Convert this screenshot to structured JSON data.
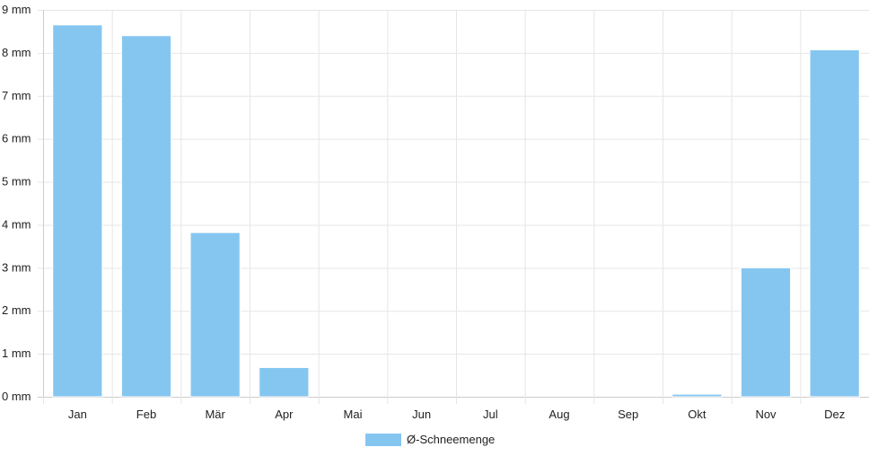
{
  "chart_data": {
    "type": "bar",
    "categories": [
      "Jan",
      "Feb",
      "Mär",
      "Apr",
      "Mai",
      "Jun",
      "Jul",
      "Aug",
      "Sep",
      "Okt",
      "Nov",
      "Dez"
    ],
    "series": [
      {
        "name": "Ø-Schneemenge",
        "values": [
          8.65,
          8.4,
          3.82,
          0.68,
          0,
          0,
          0,
          0,
          0,
          0.06,
          3.0,
          8.07
        ]
      }
    ],
    "y_ticks": [
      "0 mm",
      "1 mm",
      "2 mm",
      "3 mm",
      "4 mm",
      "5 mm",
      "6 mm",
      "7 mm",
      "8 mm",
      "9 mm"
    ],
    "ylim": [
      0,
      9
    ],
    "unit": "mm",
    "grid": true,
    "legend_position": "bottom-center",
    "colors": {
      "bar": "#85C6F1",
      "bar_edge": "#ffffff",
      "grid": "#e6e6e6",
      "axis": "#cccccc"
    }
  }
}
